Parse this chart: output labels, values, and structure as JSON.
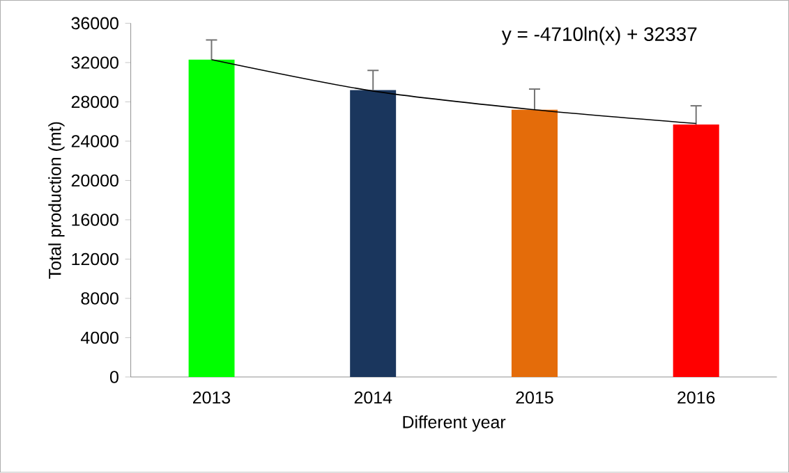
{
  "chart_data": {
    "type": "bar",
    "categories": [
      "2013",
      "2014",
      "2015",
      "2016"
    ],
    "xlabel": "Different year",
    "ylabel": "Total production (mt)",
    "ylim": [
      0,
      36000
    ],
    "yticks": [
      0,
      4000,
      8000,
      12000,
      16000,
      20000,
      24000,
      28000,
      32000,
      36000
    ],
    "grid": false,
    "series": [
      {
        "colors": [
          "#00ff00",
          "#1a365d",
          "#e46c0a",
          "#ff0000"
        ],
        "values": [
          32300,
          29200,
          27200,
          25700
        ],
        "errors": [
          [
            32300,
            34300
          ],
          [
            29200,
            31200
          ],
          [
            27200,
            29300
          ],
          [
            25700,
            27600
          ]
        ]
      },
      {
        "type": "line",
        "color": "#000000",
        "values": [
          32300,
          29100,
          27200,
          25800
        ]
      }
    ],
    "annotations": [
      "y = -4710ln(x) + 32337"
    ]
  }
}
